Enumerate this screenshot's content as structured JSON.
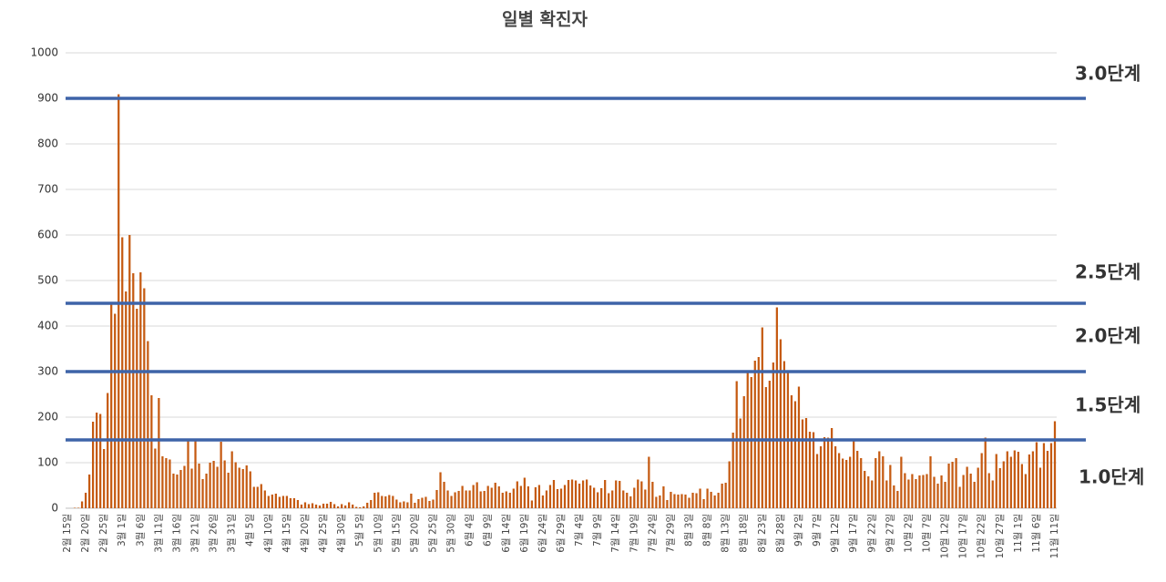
{
  "chart_data": {
    "type": "bar",
    "title": "일별 확진자",
    "color": "#c55a11",
    "ylim": [
      0,
      1000
    ],
    "yticks": [
      0,
      100,
      200,
      300,
      400,
      500,
      600,
      700,
      800,
      900,
      1000
    ],
    "grid": true,
    "reference_lines": [
      150,
      300,
      450,
      900
    ],
    "reference_color": "#3e64a8",
    "stage_labels": [
      "3.0단계",
      "2.5단계",
      "2.0단계",
      "1.5단계",
      "1.0단계"
    ],
    "categories": [
      "2월 15일",
      null,
      null,
      null,
      null,
      "2월 20일",
      null,
      null,
      null,
      null,
      "2월 25일",
      null,
      null,
      null,
      null,
      "3월 1일",
      null,
      null,
      null,
      null,
      "3월 6일",
      null,
      null,
      null,
      null,
      "3월 11일",
      null,
      null,
      null,
      null,
      "3월 16일",
      null,
      null,
      null,
      null,
      "3월 21일",
      null,
      null,
      null,
      null,
      "3월 26일",
      null,
      null,
      null,
      null,
      "3월 31일",
      null,
      null,
      null,
      null,
      "4월 5일",
      null,
      null,
      null,
      null,
      "4월 10일",
      null,
      null,
      null,
      null,
      "4월 15일",
      null,
      null,
      null,
      null,
      "4월 20일",
      null,
      null,
      null,
      null,
      "4월 25일",
      null,
      null,
      null,
      null,
      "4월 30일",
      null,
      null,
      null,
      null,
      "5월 5일",
      null,
      null,
      null,
      null,
      "5월 10일",
      null,
      null,
      null,
      null,
      "5월 15일",
      null,
      null,
      null,
      null,
      "5월 20일",
      null,
      null,
      null,
      null,
      "5월 25일",
      null,
      null,
      null,
      null,
      "5월 30일",
      null,
      null,
      null,
      null,
      "6월 4일",
      null,
      null,
      null,
      null,
      "6월 9일",
      null,
      null,
      null,
      null,
      "6월 14일",
      null,
      null,
      null,
      null,
      "6월 19일",
      null,
      null,
      null,
      null,
      "6월 24일",
      null,
      null,
      null,
      null,
      "6월 29일",
      null,
      null,
      null,
      null,
      "7월 4일",
      null,
      null,
      null,
      null,
      "7월 9일",
      null,
      null,
      null,
      null,
      "7월 14일",
      null,
      null,
      null,
      null,
      "7월 19일",
      null,
      null,
      null,
      null,
      "7월 24일",
      null,
      null,
      null,
      null,
      "7월 29일",
      null,
      null,
      null,
      null,
      "8월 3일",
      null,
      null,
      null,
      null,
      "8월 8일",
      null,
      null,
      null,
      null,
      "8월 13일",
      null,
      null,
      null,
      null,
      "8월 18일",
      null,
      null,
      null,
      null,
      "8월 23일",
      null,
      null,
      null,
      null,
      "8월 28일",
      null,
      null,
      null,
      null,
      "9월 2일",
      null,
      null,
      null,
      null,
      "9월 7일",
      null,
      null,
      null,
      null,
      "9월 12일",
      null,
      null,
      null,
      null,
      "9월 17일",
      null,
      null,
      null,
      null,
      "9월 22일",
      null,
      null,
      null,
      null,
      "9월 27일",
      null,
      null,
      null,
      null,
      "10월 2일",
      null,
      null,
      null,
      null,
      "10월 7일",
      null,
      null,
      null,
      null,
      "10월 12일",
      null,
      null,
      null,
      null,
      "10월 17일",
      null,
      null,
      null,
      null,
      "10월 22일",
      null,
      null,
      null,
      null,
      "10월 27일",
      null,
      null,
      null,
      null,
      "11월 1일",
      null,
      null,
      null,
      null,
      "11월 6일",
      null,
      null,
      null,
      null,
      "11월 11일"
    ],
    "values": [
      0,
      0,
      1,
      1,
      15,
      34,
      74,
      190,
      210,
      207,
      130,
      253,
      449,
      427,
      909,
      595,
      476,
      600,
      516,
      438,
      518,
      483,
      367,
      248,
      131,
      242,
      114,
      110,
      107,
      76,
      74,
      84,
      93,
      152,
      87,
      147,
      98,
      64,
      76,
      100,
      104,
      91,
      146,
      105,
      78,
      125,
      101,
      89,
      86,
      94,
      81,
      47,
      47,
      53,
      39,
      27,
      30,
      32,
      25,
      27,
      27,
      22,
      22,
      18,
      8,
      13,
      9,
      11,
      8,
      6,
      10,
      10,
      14,
      9,
      4,
      9,
      6,
      13,
      8,
      3,
      2,
      4,
      12,
      18,
      34,
      35,
      27,
      26,
      29,
      27,
      19,
      13,
      15,
      13,
      32,
      12,
      20,
      23,
      25,
      16,
      19,
      40,
      79,
      58,
      39,
      27,
      35,
      38,
      49,
      39,
      39,
      51,
      57,
      37,
      38,
      49,
      45,
      56,
      48,
      34,
      37,
      34,
      43,
      59,
      49,
      67,
      48,
      17,
      46,
      51,
      28,
      39,
      51,
      62,
      42,
      43,
      51,
      62,
      63,
      61,
      54,
      61,
      63,
      50,
      45,
      35,
      44,
      62,
      33,
      39,
      61,
      60,
      39,
      34,
      26,
      45,
      63,
      59,
      41,
      113,
      58,
      25,
      28,
      48,
      18,
      36,
      31,
      30,
      31,
      30,
      23,
      34,
      33,
      43,
      20,
      43,
      36,
      28,
      34,
      54,
      56,
      103,
      166,
      279,
      197,
      246,
      297,
      288,
      324,
      332,
      397,
      266,
      280,
      320,
      441,
      371,
      323,
      299,
      248,
      235,
      267,
      195,
      198,
      168,
      167,
      119,
      136,
      156,
      155,
      176,
      136,
      121,
      109,
      106,
      113,
      153,
      126,
      110,
      82,
      70,
      61,
      110,
      125,
      114,
      61,
      95,
      50,
      38,
      113,
      77,
      63,
      75,
      64,
      72,
      73,
      75,
      114,
      69,
      54,
      72,
      58,
      98,
      102,
      110,
      47,
      73,
      91,
      76,
      58,
      89,
      121,
      155,
      77,
      61,
      119,
      88,
      103,
      125,
      113,
      127,
      124,
      97,
      75,
      118,
      125,
      145,
      89,
      143,
      126,
      143,
      191
    ]
  }
}
